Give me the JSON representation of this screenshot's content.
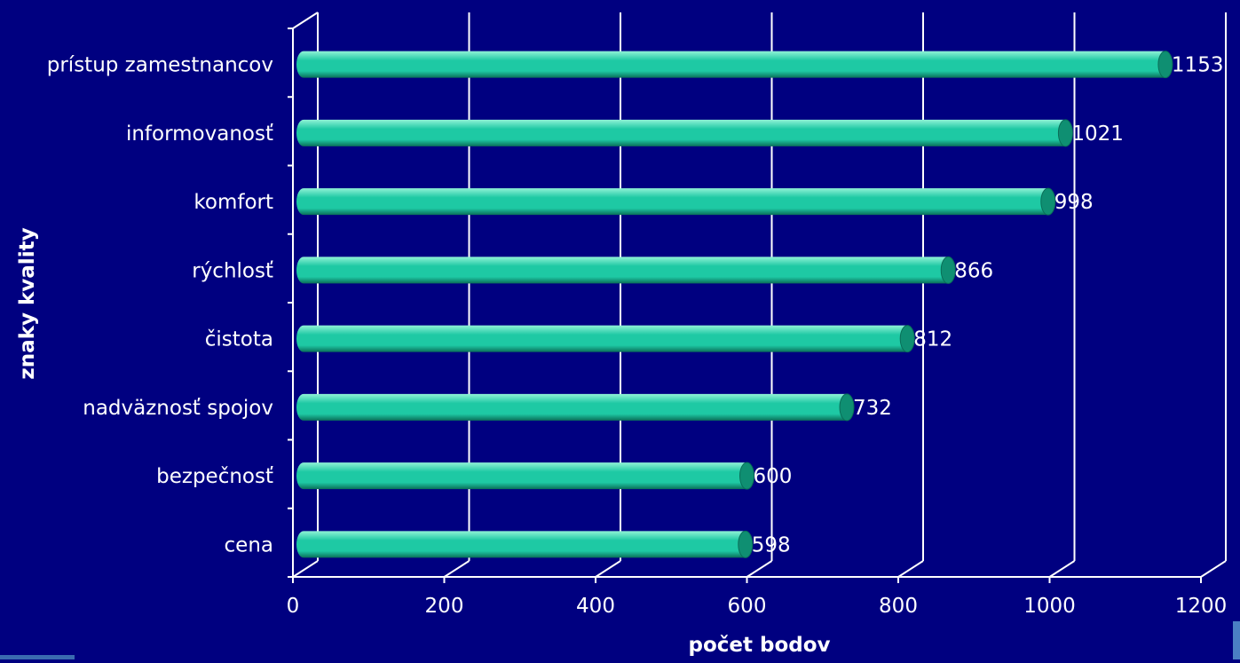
{
  "chart_data": {
    "type": "bar",
    "orientation": "horizontal",
    "style": "3d-cylinder",
    "categories": [
      "cena",
      "bezpečnosť",
      "nadväznosť spojov",
      "čistota",
      "rýchlosť",
      "komfort",
      "informovanosť",
      "prístup zamestnancov"
    ],
    "values": [
      598,
      600,
      732,
      812,
      866,
      998,
      1021,
      1153
    ],
    "xlabel": "počet bodov",
    "ylabel": "znaky kvality",
    "xlim": [
      0,
      1200
    ],
    "xticks": [
      0,
      200,
      400,
      600,
      800,
      1000,
      1200
    ],
    "grid": true,
    "legend": "none",
    "colors": {
      "background": "#000080",
      "bar": "#1ec9a4",
      "bar_highlight": "#8ff2d6",
      "bar_shadow": "#0a6e58",
      "bar_end": "#0f8f72",
      "axis": "#ffffff",
      "text": "#ffffff"
    }
  }
}
